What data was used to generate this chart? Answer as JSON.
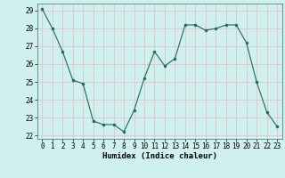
{
  "x": [
    0,
    1,
    2,
    3,
    4,
    5,
    6,
    7,
    8,
    9,
    10,
    11,
    12,
    13,
    14,
    15,
    16,
    17,
    18,
    19,
    20,
    21,
    22,
    23
  ],
  "y": [
    29.1,
    28.0,
    26.7,
    25.1,
    24.9,
    22.8,
    22.6,
    22.6,
    22.2,
    23.4,
    25.2,
    26.7,
    25.9,
    26.3,
    28.2,
    28.2,
    27.9,
    28.0,
    28.2,
    28.2,
    27.2,
    25.0,
    23.3,
    22.5
  ],
  "line_color": "#1a6b5a",
  "marker_color": "#1a6b5a",
  "bg_color": "#cff0ee",
  "grid_color": "#e8b8b8",
  "xlabel": "Humidex (Indice chaleur)",
  "ylim_min": 21.8,
  "ylim_max": 29.4,
  "xlim_min": -0.5,
  "xlim_max": 23.5,
  "yticks": [
    22,
    23,
    24,
    25,
    26,
    27,
    28,
    29
  ],
  "xtick_labels": [
    "0",
    "1",
    "2",
    "3",
    "4",
    "5",
    "6",
    "7",
    "8",
    "9",
    "10",
    "11",
    "12",
    "13",
    "14",
    "15",
    "16",
    "17",
    "18",
    "19",
    "20",
    "21",
    "22",
    "23"
  ],
  "tick_fontsize": 5.5,
  "xlabel_fontsize": 6.5,
  "xlabel_bold": true
}
